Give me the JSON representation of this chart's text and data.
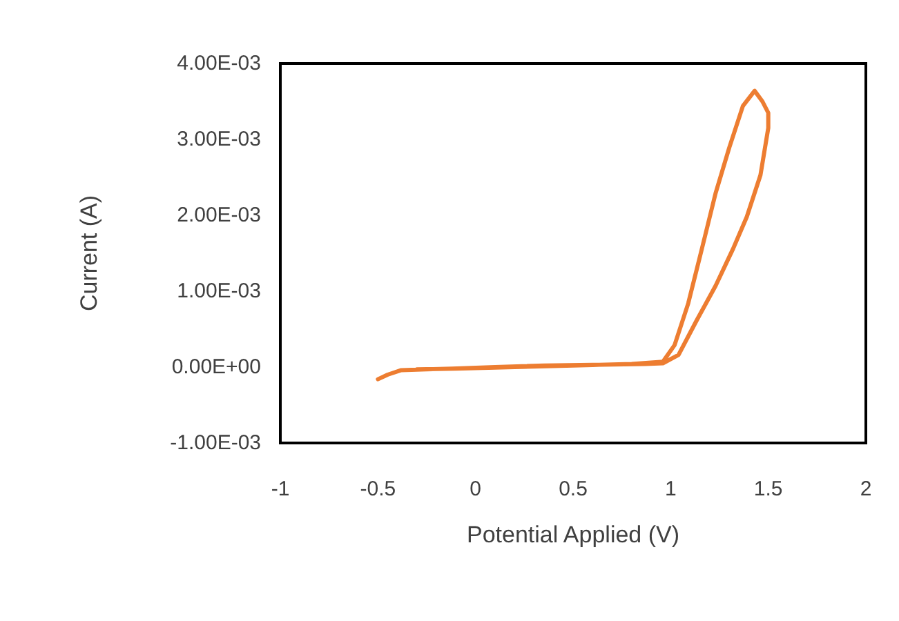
{
  "chart_data": {
    "type": "line",
    "xlabel": "Potential Applied (V)",
    "ylabel": "Current (A)",
    "series": [
      {
        "color": "#ed7d31",
        "x": [
          -0.5,
          -0.45,
          -0.38,
          -0.25,
          -0.12,
          0.1,
          0.35,
          0.6,
          0.87,
          0.96,
          1.04,
          1.13,
          1.23,
          1.32,
          1.39,
          1.46,
          1.5,
          1.5,
          1.47,
          1.43,
          1.37,
          1.3,
          1.23,
          1.16,
          1.09,
          1.02,
          0.96,
          0.8,
          0.5,
          0.2,
          -0.1,
          -0.3
        ],
        "values": [
          -0.00016,
          -0.0001,
          -4e-05,
          -3e-05,
          -2e-05,
          0.0,
          2e-05,
          3e-05,
          4e-05,
          5e-05,
          0.00016,
          0.0006,
          0.00107,
          0.00156,
          0.00198,
          0.00253,
          0.00315,
          0.00335,
          0.0035,
          0.00364,
          0.00344,
          0.00289,
          0.00229,
          0.00156,
          0.00084,
          0.00029,
          7e-05,
          4e-05,
          2e-05,
          0.0,
          -2e-05,
          -3e-05
        ]
      }
    ],
    "xlim": [
      -1,
      2
    ],
    "xticks": [
      -1,
      -0.5,
      0,
      0.5,
      1,
      1.5,
      2
    ],
    "ylim": [
      -0.001,
      0.004
    ],
    "yticks": [
      {
        "value": -0.001,
        "label": "-1.00E-03"
      },
      {
        "value": 0,
        "label": "0.00E+00"
      },
      {
        "value": 0.001,
        "label": "1.00E-03"
      },
      {
        "value": 0.002,
        "label": "2.00E-03"
      },
      {
        "value": 0.003,
        "label": "3.00E-03"
      },
      {
        "value": 0.004,
        "label": "4.00E-03"
      }
    ],
    "grid": false,
    "marker": "none",
    "line_style": "solid"
  }
}
